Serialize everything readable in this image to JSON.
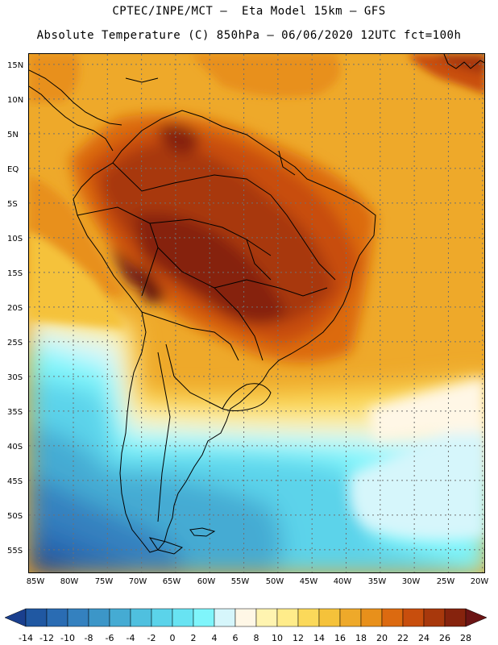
{
  "header": {
    "line1": "CPTEC/INPE/MCT –  Eta Model 15km – GFS",
    "line2": "Absolute Temperature (C) 850hPa – 06/06/2020 12UTC fct=100h"
  },
  "map": {
    "lat_labels": [
      "15N",
      "10N",
      "5N",
      "EQ",
      "5S",
      "10S",
      "15S",
      "20S",
      "25S",
      "30S",
      "35S",
      "40S",
      "45S",
      "50S",
      "55S"
    ],
    "lon_labels": [
      "85W",
      "80W",
      "75W",
      "70W",
      "65W",
      "60W",
      "55W",
      "50W",
      "45W",
      "40W",
      "35W",
      "30W",
      "25W",
      "20W"
    ],
    "lon_range": [
      -86.5,
      -19.5
    ],
    "lat_range": [
      -58.5,
      16.5
    ]
  },
  "colorbar": {
    "labels": [
      "-14",
      "-12",
      "-10",
      "-8",
      "-6",
      "-4",
      "-2",
      "0",
      "2",
      "4",
      "6",
      "8",
      "10",
      "12",
      "14",
      "16",
      "18",
      "20",
      "22",
      "24",
      "26",
      "28"
    ],
    "colors": [
      "#1a3f8e",
      "#2058a2",
      "#2a6cb3",
      "#3481bf",
      "#3c96c8",
      "#45abd3",
      "#4fc0df",
      "#5bd3ea",
      "#68e3f2",
      "#7ff5fb",
      "#d6f6fb",
      "#fff7e6",
      "#fff4b0",
      "#ffec8a",
      "#fbd95a",
      "#f5c23a",
      "#eea92a",
      "#e8901b",
      "#dc6a10",
      "#c84e0d",
      "#a8380c",
      "#86230d",
      "#6b1414"
    ]
  }
}
